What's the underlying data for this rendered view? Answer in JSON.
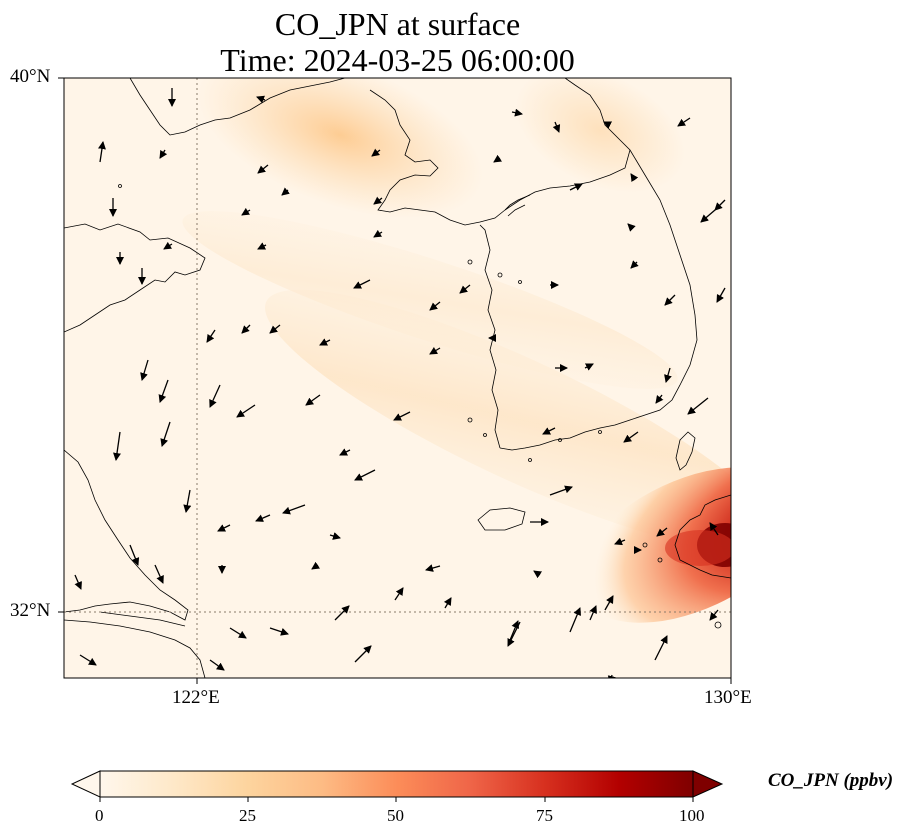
{
  "title_line1": "CO_JPN at surface",
  "title_line2": "Time: 2024-03-25 06:00:00",
  "lat_labels": [
    "40°N",
    "32°N"
  ],
  "lon_labels": [
    "122°E",
    "130°E"
  ],
  "colorbar": {
    "label": "CO_JPN (ppbv)",
    "ticks": [
      "0",
      "25",
      "50",
      "75",
      "100"
    ],
    "min": 0,
    "max": 100,
    "colormap": "OrRd",
    "extend": "both"
  },
  "map_extent": {
    "lon_min": 120,
    "lon_max": 130,
    "lat_min": 31,
    "lat_max": 40
  },
  "colors": {
    "coast": "#000000",
    "gridline": "#8a7a6a",
    "background_field": "#fff5e8"
  }
}
